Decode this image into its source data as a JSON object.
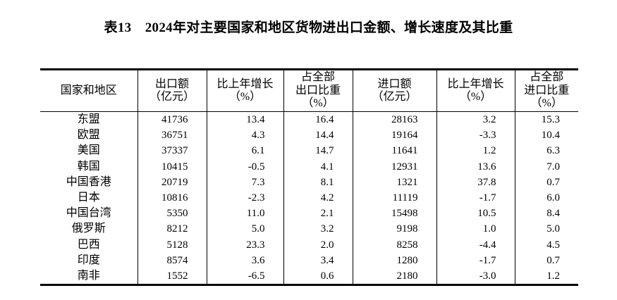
{
  "title": "表13　2024年对主要国家和地区货物进出口金额、增长速度及其比重",
  "table": {
    "headers": [
      "国家和地区",
      "出口额\n（亿元）",
      "比上年增长\n（%）",
      "占全部\n出口比重\n（%）",
      "进口额\n（亿元）",
      "比上年增长\n（%）",
      "占全部\n进口比重\n（%）"
    ],
    "rows": [
      {
        "region": "东盟",
        "export": "41736",
        "export_growth": "13.4",
        "export_share": "16.4",
        "import": "28163",
        "import_growth": "3.2",
        "import_share": "15.3"
      },
      {
        "region": "欧盟",
        "export": "36751",
        "export_growth": "4.3",
        "export_share": "14.4",
        "import": "19164",
        "import_growth": "-3.3",
        "import_share": "10.4"
      },
      {
        "region": "美国",
        "export": "37337",
        "export_growth": "6.1",
        "export_share": "14.7",
        "import": "11641",
        "import_growth": "1.2",
        "import_share": "6.3"
      },
      {
        "region": "韩国",
        "export": "10415",
        "export_growth": "-0.5",
        "export_share": "4.1",
        "import": "12931",
        "import_growth": "13.6",
        "import_share": "7.0"
      },
      {
        "region": "中国香港",
        "export": "20719",
        "export_growth": "7.3",
        "export_share": "8.1",
        "import": "1321",
        "import_growth": "37.8",
        "import_share": "0.7"
      },
      {
        "region": "日本",
        "export": "10816",
        "export_growth": "-2.3",
        "export_share": "4.2",
        "import": "11119",
        "import_growth": "-1.7",
        "import_share": "6.0"
      },
      {
        "region": "中国台湾",
        "export": "5350",
        "export_growth": "11.0",
        "export_share": "2.1",
        "import": "15498",
        "import_growth": "10.5",
        "import_share": "8.4"
      },
      {
        "region": "俄罗斯",
        "export": "8212",
        "export_growth": "5.0",
        "export_share": "3.2",
        "import": "9198",
        "import_growth": "1.0",
        "import_share": "5.0"
      },
      {
        "region": "巴西",
        "export": "5128",
        "export_growth": "23.3",
        "export_share": "2.0",
        "import": "8258",
        "import_growth": "-4.4",
        "import_share": "4.5"
      },
      {
        "region": "印度",
        "export": "8574",
        "export_growth": "3.6",
        "export_share": "3.4",
        "import": "1280",
        "import_growth": "-1.7",
        "import_share": "0.7"
      },
      {
        "region": "南非",
        "export": "1552",
        "export_growth": "-6.5",
        "export_share": "0.6",
        "import": "2180",
        "import_growth": "-3.0",
        "import_share": "1.2"
      }
    ]
  }
}
